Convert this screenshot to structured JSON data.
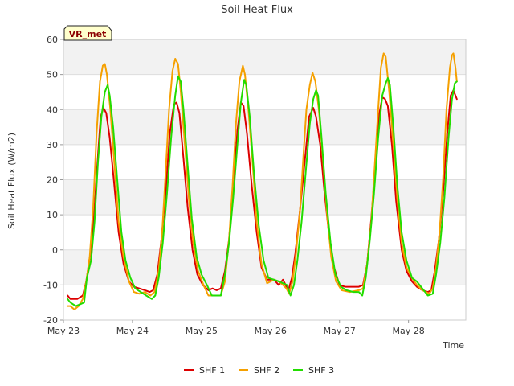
{
  "chart_data": {
    "type": "line",
    "title": "Soil Heat Flux",
    "xlabel": "Time",
    "ylabel": "Soil Heat Flux (W/m2)",
    "site_tag": "VR_met",
    "ylim": [
      -20,
      60
    ],
    "yticks": [
      -20,
      -10,
      0,
      10,
      20,
      30,
      40,
      50,
      60
    ],
    "xlim": [
      0,
      5.83
    ],
    "xticks": [
      {
        "value": 0,
        "label": "May 23"
      },
      {
        "value": 1,
        "label": "May 24"
      },
      {
        "value": 2,
        "label": "May 25"
      },
      {
        "value": 3,
        "label": "May 26"
      },
      {
        "value": 4,
        "label": "May 27"
      },
      {
        "value": 5,
        "label": "May 28"
      }
    ],
    "series": [
      {
        "name": "SHF 1",
        "color": "#dd0000",
        "points": [
          [
            0.06,
            -13
          ],
          [
            0.1,
            -14
          ],
          [
            0.2,
            -14
          ],
          [
            0.28,
            -13
          ],
          [
            0.33,
            -9
          ],
          [
            0.39,
            -1
          ],
          [
            0.45,
            12
          ],
          [
            0.5,
            27
          ],
          [
            0.54,
            38
          ],
          [
            0.58,
            40.5
          ],
          [
            0.62,
            39
          ],
          [
            0.67,
            32
          ],
          [
            0.73,
            20
          ],
          [
            0.8,
            5
          ],
          [
            0.87,
            -4
          ],
          [
            0.95,
            -9
          ],
          [
            1.02,
            -10.5
          ],
          [
            1.1,
            -11
          ],
          [
            1.18,
            -11.5
          ],
          [
            1.25,
            -12
          ],
          [
            1.3,
            -11.5
          ],
          [
            1.36,
            -7
          ],
          [
            1.42,
            3
          ],
          [
            1.48,
            16
          ],
          [
            1.54,
            33
          ],
          [
            1.6,
            41.5
          ],
          [
            1.64,
            42
          ],
          [
            1.68,
            39
          ],
          [
            1.74,
            26
          ],
          [
            1.8,
            12
          ],
          [
            1.87,
            0
          ],
          [
            1.94,
            -7
          ],
          [
            2.02,
            -10
          ],
          [
            2.1,
            -11.5
          ],
          [
            2.16,
            -11
          ],
          [
            2.22,
            -11.5
          ],
          [
            2.28,
            -11
          ],
          [
            2.34,
            -6
          ],
          [
            2.4,
            3
          ],
          [
            2.46,
            18
          ],
          [
            2.52,
            34
          ],
          [
            2.57,
            42
          ],
          [
            2.61,
            41
          ],
          [
            2.66,
            33
          ],
          [
            2.73,
            18
          ],
          [
            2.8,
            5
          ],
          [
            2.87,
            -5
          ],
          [
            2.95,
            -8.5
          ],
          [
            3.05,
            -8.5
          ],
          [
            3.12,
            -10
          ],
          [
            3.18,
            -8.5
          ],
          [
            3.22,
            -10
          ],
          [
            3.26,
            -11.5
          ],
          [
            3.31,
            -8
          ],
          [
            3.36,
            -1
          ],
          [
            3.43,
            12
          ],
          [
            3.5,
            26
          ],
          [
            3.56,
            38
          ],
          [
            3.62,
            40.5
          ],
          [
            3.66,
            38
          ],
          [
            3.72,
            30
          ],
          [
            3.78,
            17
          ],
          [
            3.85,
            4
          ],
          [
            3.92,
            -5
          ],
          [
            4.0,
            -10
          ],
          [
            4.08,
            -10.5
          ],
          [
            4.18,
            -10.5
          ],
          [
            4.28,
            -10.5
          ],
          [
            4.34,
            -10
          ],
          [
            4.4,
            -4
          ],
          [
            4.46,
            9
          ],
          [
            4.52,
            24
          ],
          [
            4.57,
            38
          ],
          [
            4.62,
            43.5
          ],
          [
            4.66,
            43
          ],
          [
            4.7,
            41
          ],
          [
            4.76,
            30
          ],
          [
            4.82,
            14
          ],
          [
            4.9,
            0
          ],
          [
            4.97,
            -6
          ],
          [
            5.05,
            -9
          ],
          [
            5.12,
            -10.5
          ],
          [
            5.2,
            -11.5
          ],
          [
            5.28,
            -12
          ],
          [
            5.33,
            -11.5
          ],
          [
            5.38,
            -6
          ],
          [
            5.44,
            3
          ],
          [
            5.5,
            16
          ],
          [
            5.56,
            33
          ],
          [
            5.61,
            44
          ],
          [
            5.65,
            45.5
          ],
          [
            5.68,
            44
          ],
          [
            5.7,
            43
          ]
        ]
      },
      {
        "name": "SHF 2",
        "color": "#f5a000",
        "points": [
          [
            0.06,
            -16
          ],
          [
            0.1,
            -16
          ],
          [
            0.16,
            -17
          ],
          [
            0.22,
            -16
          ],
          [
            0.28,
            -14
          ],
          [
            0.33,
            -9
          ],
          [
            0.38,
            -2
          ],
          [
            0.43,
            12
          ],
          [
            0.48,
            33
          ],
          [
            0.53,
            48
          ],
          [
            0.57,
            52.5
          ],
          [
            0.6,
            53
          ],
          [
            0.63,
            50
          ],
          [
            0.68,
            40
          ],
          [
            0.74,
            24
          ],
          [
            0.8,
            8
          ],
          [
            0.87,
            -2
          ],
          [
            0.95,
            -9
          ],
          [
            1.02,
            -12
          ],
          [
            1.1,
            -12.5
          ],
          [
            1.18,
            -12
          ],
          [
            1.26,
            -13
          ],
          [
            1.32,
            -12
          ],
          [
            1.38,
            -6
          ],
          [
            1.43,
            5
          ],
          [
            1.48,
            22
          ],
          [
            1.53,
            40
          ],
          [
            1.58,
            51
          ],
          [
            1.62,
            54.5
          ],
          [
            1.66,
            53
          ],
          [
            1.7,
            45
          ],
          [
            1.76,
            30
          ],
          [
            1.82,
            14
          ],
          [
            1.88,
            2
          ],
          [
            1.95,
            -6
          ],
          [
            2.03,
            -10
          ],
          [
            2.1,
            -13
          ],
          [
            2.2,
            -13
          ],
          [
            2.28,
            -13
          ],
          [
            2.34,
            -9
          ],
          [
            2.4,
            3
          ],
          [
            2.45,
            18
          ],
          [
            2.5,
            36
          ],
          [
            2.55,
            48
          ],
          [
            2.6,
            52.5
          ],
          [
            2.63,
            50
          ],
          [
            2.68,
            40
          ],
          [
            2.74,
            25
          ],
          [
            2.8,
            8
          ],
          [
            2.87,
            -4
          ],
          [
            2.95,
            -9.5
          ],
          [
            3.05,
            -8.5
          ],
          [
            3.12,
            -9
          ],
          [
            3.18,
            -10
          ],
          [
            3.23,
            -11
          ],
          [
            3.27,
            -12.5
          ],
          [
            3.32,
            -9
          ],
          [
            3.37,
            -1
          ],
          [
            3.43,
            12
          ],
          [
            3.48,
            28
          ],
          [
            3.52,
            40
          ],
          [
            3.57,
            47
          ],
          [
            3.61,
            50.5
          ],
          [
            3.65,
            48
          ],
          [
            3.7,
            40
          ],
          [
            3.76,
            26
          ],
          [
            3.82,
            10
          ],
          [
            3.88,
            -2
          ],
          [
            3.95,
            -9
          ],
          [
            4.03,
            -11.5
          ],
          [
            4.15,
            -12
          ],
          [
            4.28,
            -11.5
          ],
          [
            4.34,
            -11
          ],
          [
            4.4,
            -4
          ],
          [
            4.46,
            8
          ],
          [
            4.51,
            24
          ],
          [
            4.56,
            40
          ],
          [
            4.6,
            52
          ],
          [
            4.64,
            56
          ],
          [
            4.67,
            55
          ],
          [
            4.72,
            45
          ],
          [
            4.78,
            30
          ],
          [
            4.84,
            14
          ],
          [
            4.9,
            2
          ],
          [
            4.97,
            -5
          ],
          [
            5.05,
            -8
          ],
          [
            5.12,
            -10
          ],
          [
            5.2,
            -11.5
          ],
          [
            5.3,
            -12.5
          ],
          [
            5.35,
            -11
          ],
          [
            5.4,
            -5
          ],
          [
            5.45,
            5
          ],
          [
            5.5,
            20
          ],
          [
            5.55,
            40
          ],
          [
            5.6,
            52
          ],
          [
            5.63,
            55.5
          ],
          [
            5.65,
            56
          ],
          [
            5.68,
            52
          ],
          [
            5.7,
            48
          ]
        ]
      },
      {
        "name": "SHF 3",
        "color": "#22dd00",
        "points": [
          [
            0.06,
            -14
          ],
          [
            0.1,
            -15
          ],
          [
            0.18,
            -16
          ],
          [
            0.24,
            -15.5
          ],
          [
            0.3,
            -15
          ],
          [
            0.34,
            -8
          ],
          [
            0.4,
            -3
          ],
          [
            0.45,
            8
          ],
          [
            0.5,
            25
          ],
          [
            0.55,
            38
          ],
          [
            0.6,
            45
          ],
          [
            0.64,
            47
          ],
          [
            0.67,
            44
          ],
          [
            0.72,
            35
          ],
          [
            0.78,
            20
          ],
          [
            0.84,
            5
          ],
          [
            0.9,
            -3
          ],
          [
            0.97,
            -8
          ],
          [
            1.04,
            -11
          ],
          [
            1.12,
            -12
          ],
          [
            1.2,
            -13
          ],
          [
            1.28,
            -14
          ],
          [
            1.33,
            -13
          ],
          [
            1.38,
            -8
          ],
          [
            1.44,
            2
          ],
          [
            1.5,
            16
          ],
          [
            1.56,
            32
          ],
          [
            1.62,
            44
          ],
          [
            1.66,
            49.5
          ],
          [
            1.7,
            48
          ],
          [
            1.74,
            40
          ],
          [
            1.8,
            24
          ],
          [
            1.86,
            9
          ],
          [
            1.93,
            -2
          ],
          [
            2.0,
            -7
          ],
          [
            2.08,
            -10
          ],
          [
            2.15,
            -13
          ],
          [
            2.22,
            -13
          ],
          [
            2.28,
            -13
          ],
          [
            2.34,
            -7
          ],
          [
            2.4,
            2
          ],
          [
            2.46,
            15
          ],
          [
            2.52,
            30
          ],
          [
            2.57,
            42
          ],
          [
            2.62,
            48.5
          ],
          [
            2.65,
            47
          ],
          [
            2.7,
            38
          ],
          [
            2.76,
            22
          ],
          [
            2.83,
            7
          ],
          [
            2.9,
            -3
          ],
          [
            2.97,
            -8
          ],
          [
            3.05,
            -8.5
          ],
          [
            3.12,
            -9
          ],
          [
            3.18,
            -9.5
          ],
          [
            3.24,
            -10
          ],
          [
            3.29,
            -13
          ],
          [
            3.34,
            -10
          ],
          [
            3.39,
            -3
          ],
          [
            3.45,
            8
          ],
          [
            3.51,
            22
          ],
          [
            3.57,
            36
          ],
          [
            3.62,
            43
          ],
          [
            3.66,
            45.5
          ],
          [
            3.69,
            44
          ],
          [
            3.74,
            32
          ],
          [
            3.8,
            16
          ],
          [
            3.87,
            2
          ],
          [
            3.94,
            -7
          ],
          [
            4.02,
            -10.5
          ],
          [
            4.1,
            -11.5
          ],
          [
            4.2,
            -12
          ],
          [
            4.28,
            -12
          ],
          [
            4.33,
            -13
          ],
          [
            4.38,
            -8
          ],
          [
            4.44,
            3
          ],
          [
            4.5,
            16
          ],
          [
            4.56,
            32
          ],
          [
            4.62,
            44
          ],
          [
            4.67,
            47.5
          ],
          [
            4.7,
            49
          ],
          [
            4.73,
            47
          ],
          [
            4.78,
            35
          ],
          [
            4.84,
            18
          ],
          [
            4.9,
            5
          ],
          [
            4.97,
            -3
          ],
          [
            5.05,
            -8
          ],
          [
            5.12,
            -9
          ],
          [
            5.2,
            -11
          ],
          [
            5.28,
            -13
          ],
          [
            5.35,
            -12.5
          ],
          [
            5.4,
            -7
          ],
          [
            5.46,
            2
          ],
          [
            5.52,
            15
          ],
          [
            5.58,
            32
          ],
          [
            5.63,
            43
          ],
          [
            5.67,
            47.5
          ],
          [
            5.7,
            48
          ]
        ]
      }
    ]
  }
}
